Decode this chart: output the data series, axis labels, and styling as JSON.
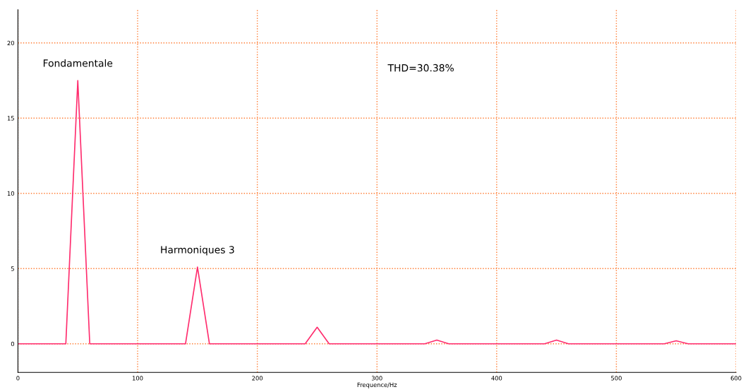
{
  "chart_data": {
    "type": "line",
    "xlabel": "Frequence/Hz",
    "x": [
      0,
      40,
      50,
      60,
      140,
      150,
      160,
      240,
      250,
      260,
      340,
      350,
      360,
      440,
      450,
      460,
      540,
      550,
      560,
      600
    ],
    "series": [
      {
        "color": "#ff2d6e",
        "values": [
          0,
          0,
          17.5,
          0,
          0,
          5.1,
          0,
          0,
          1.1,
          0,
          0,
          0.25,
          0,
          0,
          0.25,
          0,
          0,
          0.2,
          0,
          0
        ]
      }
    ],
    "xlim": [
      0,
      600
    ],
    "xticks": [
      0,
      100,
      200,
      300,
      400,
      500,
      600
    ],
    "ylim": [
      -1.9,
      22.2
    ],
    "yticks": [
      0,
      5,
      10,
      15,
      20
    ],
    "grid": true,
    "marker": "none",
    "line_style": "solid",
    "annotations": [
      {
        "text": "Fondamentale",
        "x": 50,
        "y": 17.5
      },
      {
        "text": "Harmoniques 3",
        "x": 150,
        "y": 5.1
      },
      "THD=30.38%"
    ]
  }
}
